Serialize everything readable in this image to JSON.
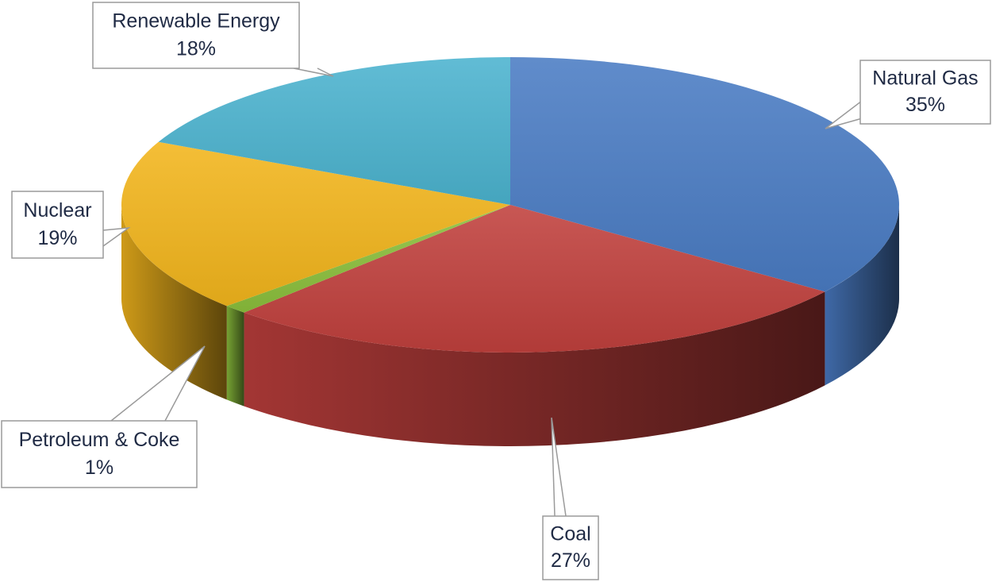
{
  "chart_data": {
    "type": "pie",
    "style": "3d",
    "slices": [
      {
        "label": "Natural Gas",
        "value": 35,
        "display": "35%",
        "color": "#4a7cc4"
      },
      {
        "label": "Coal",
        "value": 27,
        "display": "27%",
        "color": "#c0403d"
      },
      {
        "label": "Petroleum & Coke",
        "value": 1,
        "display": "1%",
        "color": "#8bbf3c"
      },
      {
        "label": "Nuclear",
        "value": 19,
        "display": "19%",
        "color": "#f2b51c"
      },
      {
        "label": "Renewable Energy",
        "value": 18,
        "display": "18%",
        "color": "#4bb3cf"
      }
    ],
    "title": "",
    "legend": "none"
  }
}
